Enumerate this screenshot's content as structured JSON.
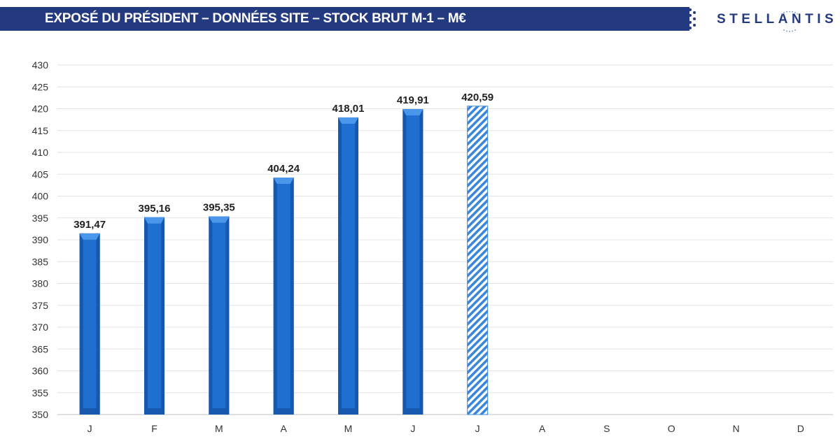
{
  "header": {
    "title": "EXPOSÉ DU PRÉSIDENT – DONNÉES SITE – STOCK BRUT M-1 – M€",
    "logo_text": "STELLANTIS"
  },
  "colors": {
    "header_bg": "#243a80",
    "bar": "#1e6fd0",
    "bar_dark": "#1558ad",
    "bar_light": "#4a96ea",
    "hatch": "#3a86d8",
    "grid": "#e3e3e3"
  },
  "chart_data": {
    "type": "bar",
    "title": "",
    "xlabel": "",
    "ylabel": "",
    "ylim": [
      350,
      430
    ],
    "ytick_step": 5,
    "grid": true,
    "categories": [
      "J",
      "F",
      "M",
      "A",
      "M",
      "J",
      "J",
      "A",
      "S",
      "O",
      "N",
      "D"
    ],
    "values": [
      391.47,
      395.16,
      395.35,
      404.24,
      418.01,
      419.91,
      420.59,
      null,
      null,
      null,
      null,
      null
    ],
    "value_labels": [
      "391,47",
      "395,16",
      "395,35",
      "404,24",
      "418,01",
      "419,91",
      "420,59",
      "",
      "",
      "",
      "",
      ""
    ],
    "hatched": [
      false,
      false,
      false,
      false,
      false,
      false,
      true,
      false,
      false,
      false,
      false,
      false
    ]
  }
}
